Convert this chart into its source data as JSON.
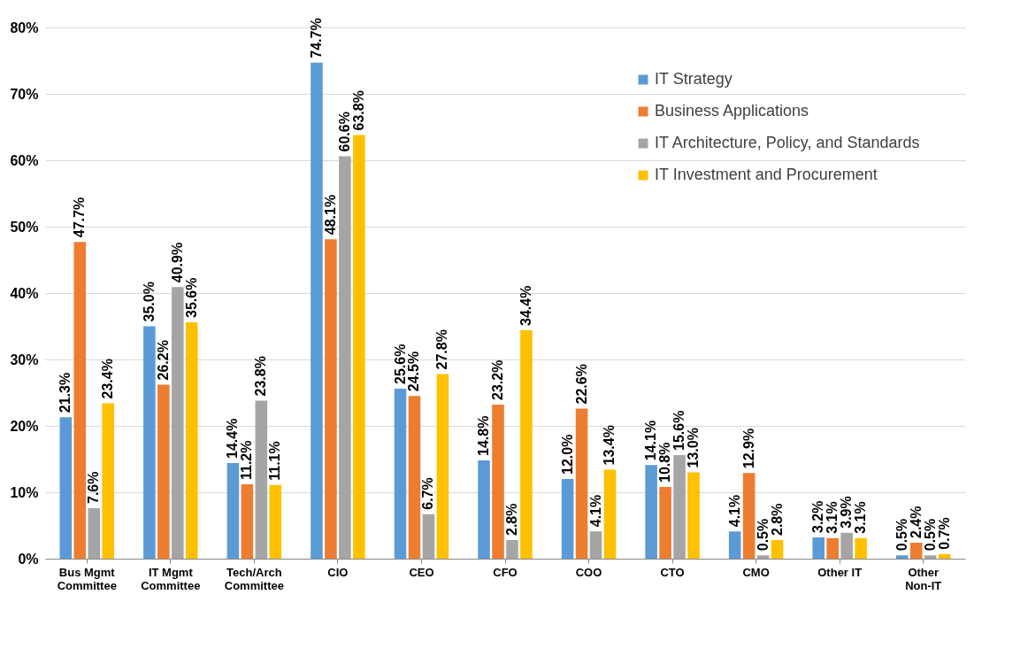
{
  "chart_data": {
    "type": "bar",
    "categories": [
      "Bus Mgmt Committee",
      "IT Mgmt Committee",
      "Tech/Arch Committee",
      "CIO",
      "CEO",
      "CFO",
      "COO",
      "CTO",
      "CMO",
      "Other IT",
      "Other Non-IT"
    ],
    "series": [
      {
        "name": "IT Strategy",
        "color": "#5b9bd5",
        "values": [
          21.3,
          35.0,
          14.4,
          74.7,
          25.6,
          14.8,
          12.0,
          14.1,
          4.1,
          3.2,
          0.5
        ],
        "value_labels": [
          "21.3%",
          "35.0%",
          "14.4%",
          "74.7%",
          "25.6%",
          "14.8%",
          "12.0%",
          "14.1%",
          "4.1%",
          "3.2%",
          "0.5%"
        ]
      },
      {
        "name": "Business Applications",
        "color": "#ed7d31",
        "values": [
          47.7,
          26.2,
          11.2,
          48.1,
          24.5,
          23.2,
          22.6,
          10.8,
          12.9,
          3.1,
          2.4
        ],
        "value_labels": [
          "47.7%",
          "26.2%",
          "11.2%",
          "48.1%",
          "24.5%",
          "23.2%",
          "22.6%",
          "10.8%",
          "12.9%",
          "3.1%",
          "2.4%"
        ]
      },
      {
        "name": "IT Architecture, Policy, and Standards",
        "color": "#a5a5a5",
        "values": [
          7.6,
          40.9,
          23.8,
          60.6,
          6.7,
          2.8,
          4.1,
          15.6,
          0.5,
          3.9,
          0.5
        ],
        "value_labels": [
          "7.6%",
          "40.9%",
          "23.8%",
          "60.6%",
          "6.7%",
          "2.8%",
          "4.1%",
          "15.6%",
          "0.5%",
          "3.9%",
          "0.5%"
        ]
      },
      {
        "name": "IT Investment and Procurement",
        "color": "#ffc000",
        "values": [
          23.4,
          35.6,
          11.1,
          63.8,
          27.8,
          34.4,
          13.4,
          13.0,
          2.8,
          3.1,
          0.7
        ],
        "value_labels": [
          "23.4%",
          "35.6%",
          "11.1%",
          "63.8%",
          "27.8%",
          "34.4%",
          "13.4%",
          "13.0%",
          "2.8%",
          "3.1%",
          "0.7%"
        ]
      }
    ],
    "ylim": [
      0,
      80
    ],
    "yticks": [
      {
        "value": 0,
        "label": "0%"
      },
      {
        "value": 10,
        "label": "10%"
      },
      {
        "value": 20,
        "label": "20%"
      },
      {
        "value": 30,
        "label": "30%"
      },
      {
        "value": 40,
        "label": "40%"
      },
      {
        "value": 50,
        "label": "50%"
      },
      {
        "value": 60,
        "label": "60%"
      },
      {
        "value": 70,
        "label": "70%"
      },
      {
        "value": 80,
        "label": "80%"
      }
    ],
    "grid": "y",
    "legend": "top right"
  }
}
